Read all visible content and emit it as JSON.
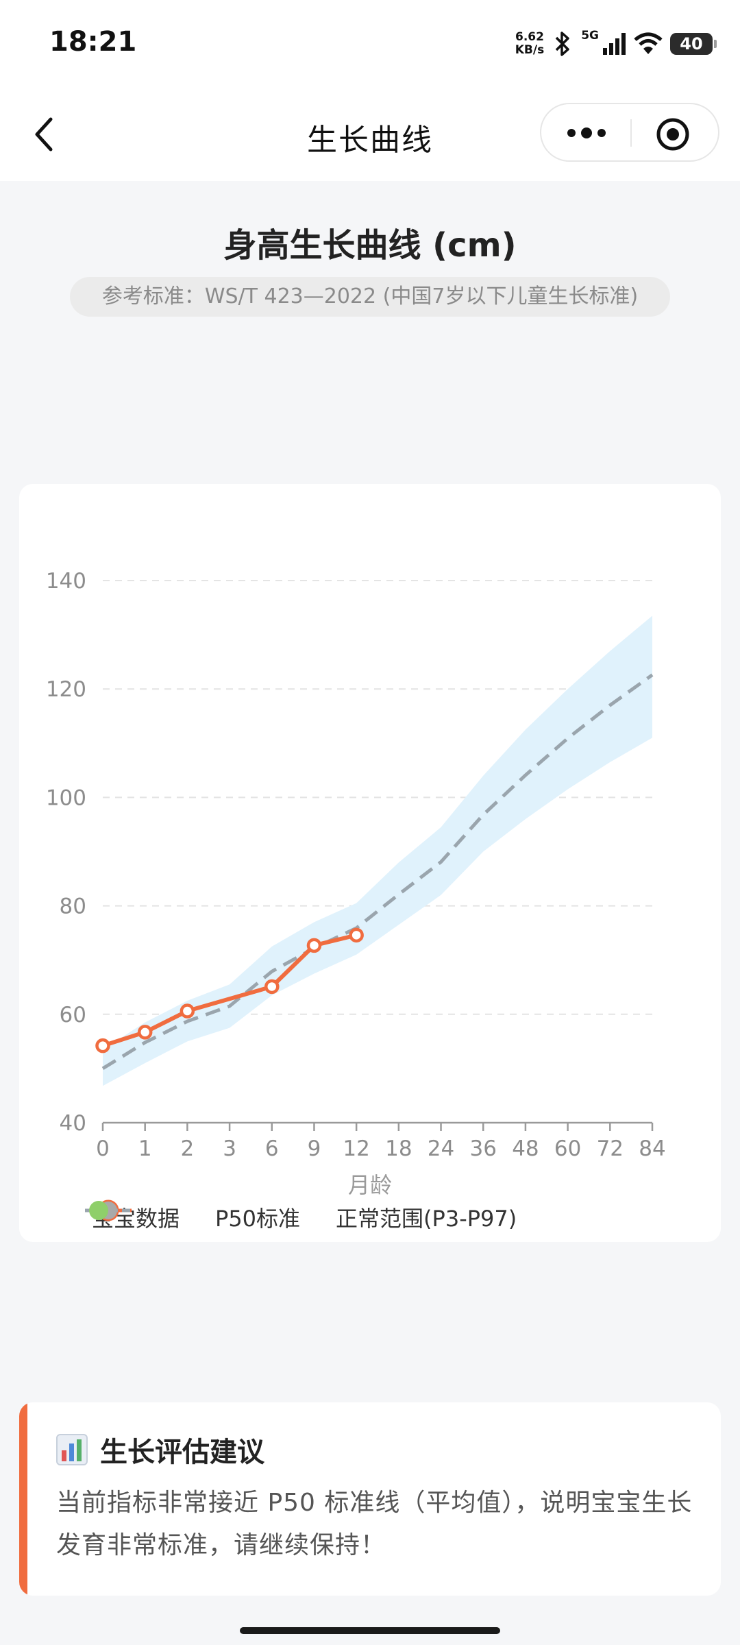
{
  "status_bar": {
    "time": "18:21",
    "net_speed_value": "6.62",
    "net_speed_unit": "KB/s",
    "network": "5G",
    "battery": "40",
    "icons": [
      "bluetooth-icon",
      "signal-icon",
      "wifi-icon",
      "battery-icon"
    ]
  },
  "nav": {
    "title": "生长曲线",
    "back_icon": "chevron-left-icon",
    "more_icon": "more-dots-icon",
    "close_icon": "target-circle-icon"
  },
  "header": {
    "chart_title": "身高生长曲线 (cm)",
    "reference": "参考标准：WS/T 423—2022 (中国7岁以下儿童生长标准)"
  },
  "chart_data": {
    "type": "line",
    "title": "身高生长曲线 (cm)",
    "xlabel": "月龄",
    "ylabel": "",
    "categories": [
      "0",
      "1",
      "2",
      "3",
      "6",
      "9",
      "12",
      "18",
      "24",
      "36",
      "48",
      "60",
      "72",
      "84"
    ],
    "ylim": [
      40,
      140
    ],
    "yticks": [
      40,
      60,
      80,
      100,
      120,
      140
    ],
    "grid": true,
    "legend_position": "bottom",
    "colors": {
      "baby": "#f06c3f",
      "p50": "#9aa5ad",
      "range_fill": "#e0f2fc",
      "range_legend": "#8fcf6a"
    },
    "series": [
      {
        "name": "宝宝数据",
        "style": "solid-marker",
        "values": [
          54.2,
          56.7,
          60.6,
          null,
          65.1,
          72.7,
          74.6,
          null,
          null,
          null,
          null,
          null,
          null,
          null
        ]
      },
      {
        "name": "P50标准",
        "style": "dashed",
        "values": [
          50.0,
          54.8,
          58.7,
          61.5,
          67.9,
          72.2,
          75.9,
          82.1,
          88.1,
          96.8,
          104.1,
          110.9,
          117.0,
          122.6
        ]
      },
      {
        "name": "正常范围(P3-P97)",
        "style": "band",
        "lower": [
          46.8,
          51.0,
          55.0,
          57.5,
          63.5,
          67.5,
          71.0,
          76.5,
          82.0,
          90.0,
          96.0,
          101.5,
          106.5,
          111.0
        ],
        "upper": [
          53.5,
          58.5,
          62.5,
          65.5,
          72.5,
          77.0,
          80.5,
          88.0,
          94.5,
          104.0,
          112.5,
          120.0,
          127.0,
          133.5
        ]
      }
    ]
  },
  "advice": {
    "icon": "bar-chart-icon",
    "title": "生长评估建议",
    "text": "当前指标非常接近 P50 标准线（平均值），说明宝宝生长发育非常标准，请继续保持！"
  }
}
